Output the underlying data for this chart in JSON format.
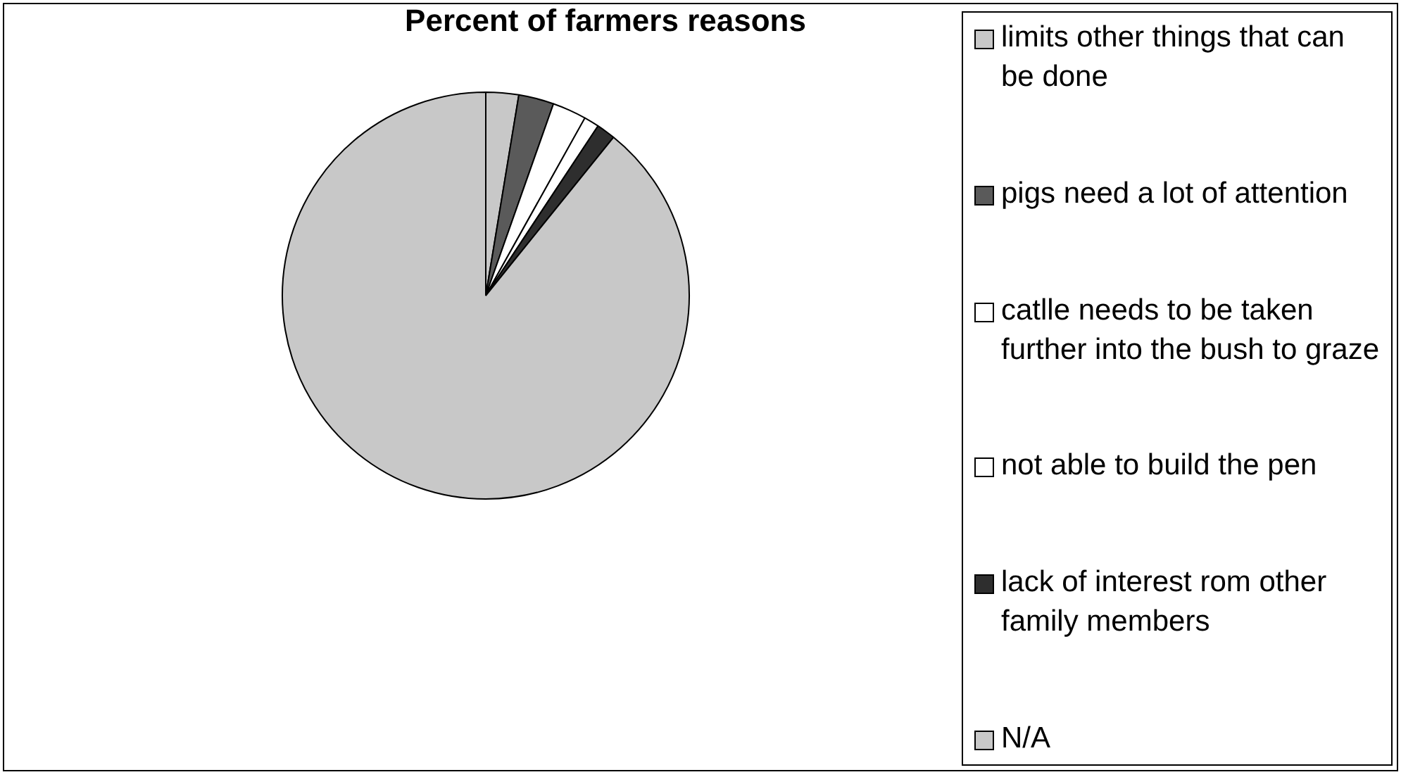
{
  "chart_data": {
    "type": "pie",
    "title": "Percent of farmers reasons",
    "categories": [
      "limits other things that can be done",
      "pigs need a lot of attention",
      "catlle needs to be taken further into the bush to graze",
      "not able to build the pen",
      "lack of interest rom other family members",
      "N/A"
    ],
    "values": [
      2.6,
      2.8,
      2.7,
      1.2,
      1.5,
      89.2
    ],
    "colors": [
      "#c8c8c8",
      "#5a5a5a",
      "#ffffff",
      "#ffffff",
      "#2e2e2e",
      "#c8c8c8"
    ],
    "legend": "right"
  }
}
